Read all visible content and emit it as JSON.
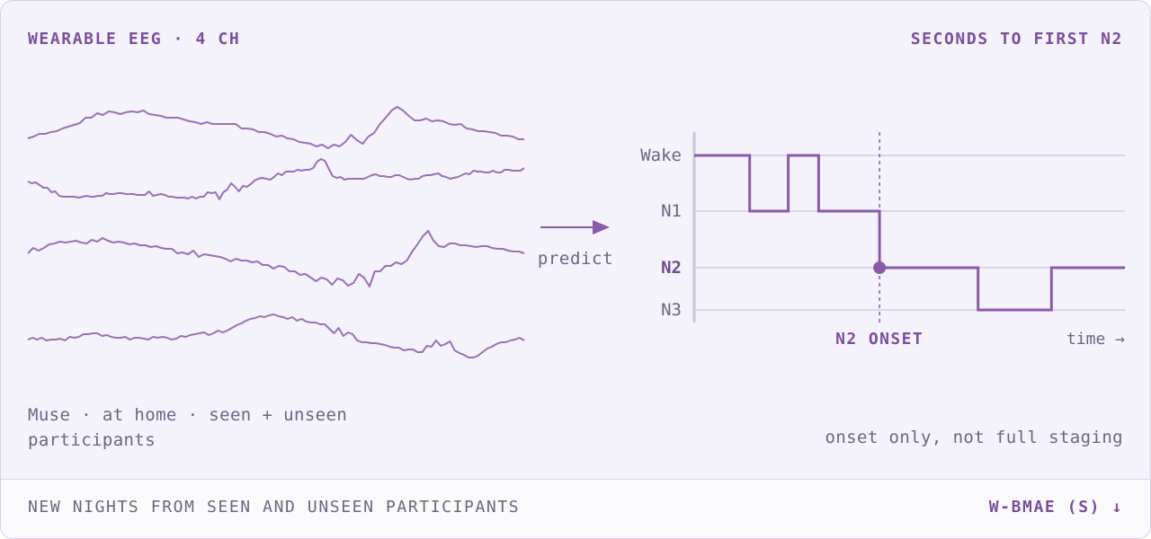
{
  "header": {
    "left_title": "WEARABLE EEG · 4 CH",
    "right_title": "SECONDS TO FIRST N2"
  },
  "eeg": {
    "color": "#9a72b4",
    "channels": [
      [
        153,
        151,
        148,
        148,
        146,
        145,
        142,
        140,
        138,
        136,
        130,
        130,
        125,
        127,
        123,
        124,
        126,
        124,
        123,
        124,
        122,
        126,
        127,
        128,
        130,
        130,
        130,
        132,
        134,
        135,
        137,
        135,
        137,
        137,
        137,
        137,
        137,
        142,
        142,
        143,
        146,
        146,
        148,
        151,
        150,
        153,
        154,
        157,
        158,
        159,
        162,
        160,
        164,
        160,
        162,
        157,
        149,
        155,
        159,
        151,
        147,
        137,
        130,
        122,
        118,
        122,
        128,
        133,
        133,
        131,
        134,
        133,
        134,
        137,
        138,
        137,
        142,
        143,
        145,
        145,
        146,
        147,
        150,
        150,
        151,
        154,
        154
      ],
      [
        201,
        203,
        202,
        205,
        208,
        208,
        213,
        212,
        217,
        218,
        218,
        218,
        218,
        219,
        218,
        217,
        218,
        218,
        217,
        217,
        214,
        215,
        215,
        214,
        214,
        215,
        215,
        215,
        216,
        216,
        216,
        212,
        217,
        216,
        215,
        216,
        218,
        218,
        219,
        219,
        219,
        220,
        218,
        220,
        218,
        218,
        213,
        214,
        213,
        221,
        213,
        210,
        203,
        207,
        212,
        206,
        207,
        204,
        200,
        198,
        197,
        198,
        199,
        196,
        192,
        194,
        190,
        190,
        190,
        188,
        189,
        188,
        188,
        186,
        179,
        176,
        178,
        187,
        195,
        197,
        196,
        199,
        198,
        198,
        198,
        198,
        198,
        196,
        194,
        193,
        195,
        195,
        196,
        196,
        194,
        194,
        196,
        198,
        199,
        198,
        198,
        195,
        194,
        194,
        193,
        192,
        195,
        196,
        198,
        197,
        196,
        194,
        192,
        193,
        189,
        190,
        190,
        191,
        191,
        189,
        191,
        191,
        188,
        188,
        189,
        189,
        189,
        186
      ],
      [
        281,
        275,
        278,
        275,
        271,
        270,
        268,
        269,
        268,
        267,
        269,
        270,
        266,
        268,
        264,
        267,
        269,
        268,
        269,
        271,
        270,
        272,
        272,
        274,
        273,
        275,
        276,
        276,
        281,
        280,
        282,
        278,
        285,
        282,
        283,
        284,
        285,
        287,
        290,
        287,
        289,
        289,
        291,
        290,
        294,
        294,
        298,
        295,
        296,
        301,
        301,
        305,
        304,
        308,
        312,
        308,
        310,
        316,
        309,
        311,
        317,
        314,
        304,
        308,
        318,
        301,
        301,
        295,
        295,
        291,
        293,
        289,
        279,
        271,
        262,
        256,
        267,
        273,
        274,
        270,
        270,
        272,
        272,
        273,
        274,
        273,
        273,
        275,
        276,
        276,
        278,
        279,
        279,
        281
      ],
      [
        377,
        375,
        377,
        375,
        378,
        377,
        377,
        376,
        378,
        374,
        375,
        374,
        371,
        371,
        370,
        370,
        373,
        372,
        374,
        375,
        375,
        374,
        377,
        375,
        375,
        376,
        377,
        374,
        375,
        374,
        375,
        377,
        376,
        373,
        374,
        372,
        371,
        370,
        369,
        372,
        370,
        367,
        369,
        367,
        364,
        361,
        359,
        356,
        354,
        353,
        351,
        352,
        350,
        349,
        351,
        352,
        354,
        352,
        356,
        354,
        357,
        358,
        358,
        360,
        360,
        365,
        370,
        364,
        373,
        369,
        371,
        378,
        380,
        380,
        381,
        381,
        382,
        383,
        385,
        386,
        386,
        389,
        388,
        388,
        391,
        391,
        384,
        385,
        378,
        384,
        382,
        379,
        389,
        392,
        394,
        397,
        397,
        395,
        391,
        387,
        385,
        382,
        380,
        380,
        378,
        377,
        375,
        378
      ]
    ]
  },
  "arrow": {
    "label": "predict",
    "color": "#8a5ba8"
  },
  "hypnogram": {
    "stages": [
      "Wake",
      "N1",
      "N2",
      "N3"
    ],
    "emphasized_stage": "N2",
    "sequence": [
      {
        "stage": "Wake",
        "duration": 62
      },
      {
        "stage": "N1",
        "duration": 43
      },
      {
        "stage": "Wake",
        "duration": 34
      },
      {
        "stage": "N1",
        "duration": 68
      },
      {
        "stage": "N2",
        "duration": 110
      },
      {
        "stage": "N3",
        "duration": 82
      },
      {
        "stage": "N2",
        "duration": 82
      }
    ],
    "onset_stage": "N2",
    "onset_label": "N2 ONSET",
    "time_label": "time →",
    "line_color": "#8a5ba8",
    "grid_color": "#dcd4ea",
    "axis_color": "#cfc4e0"
  },
  "captions": {
    "left": "Muse · at home · seen + unseen participants",
    "right": "onset only, not full staging"
  },
  "footer": {
    "left": "NEW NIGHTS FROM SEEN AND UNSEEN PARTICIPANTS",
    "right": "W-BMAE (S) ↓"
  }
}
